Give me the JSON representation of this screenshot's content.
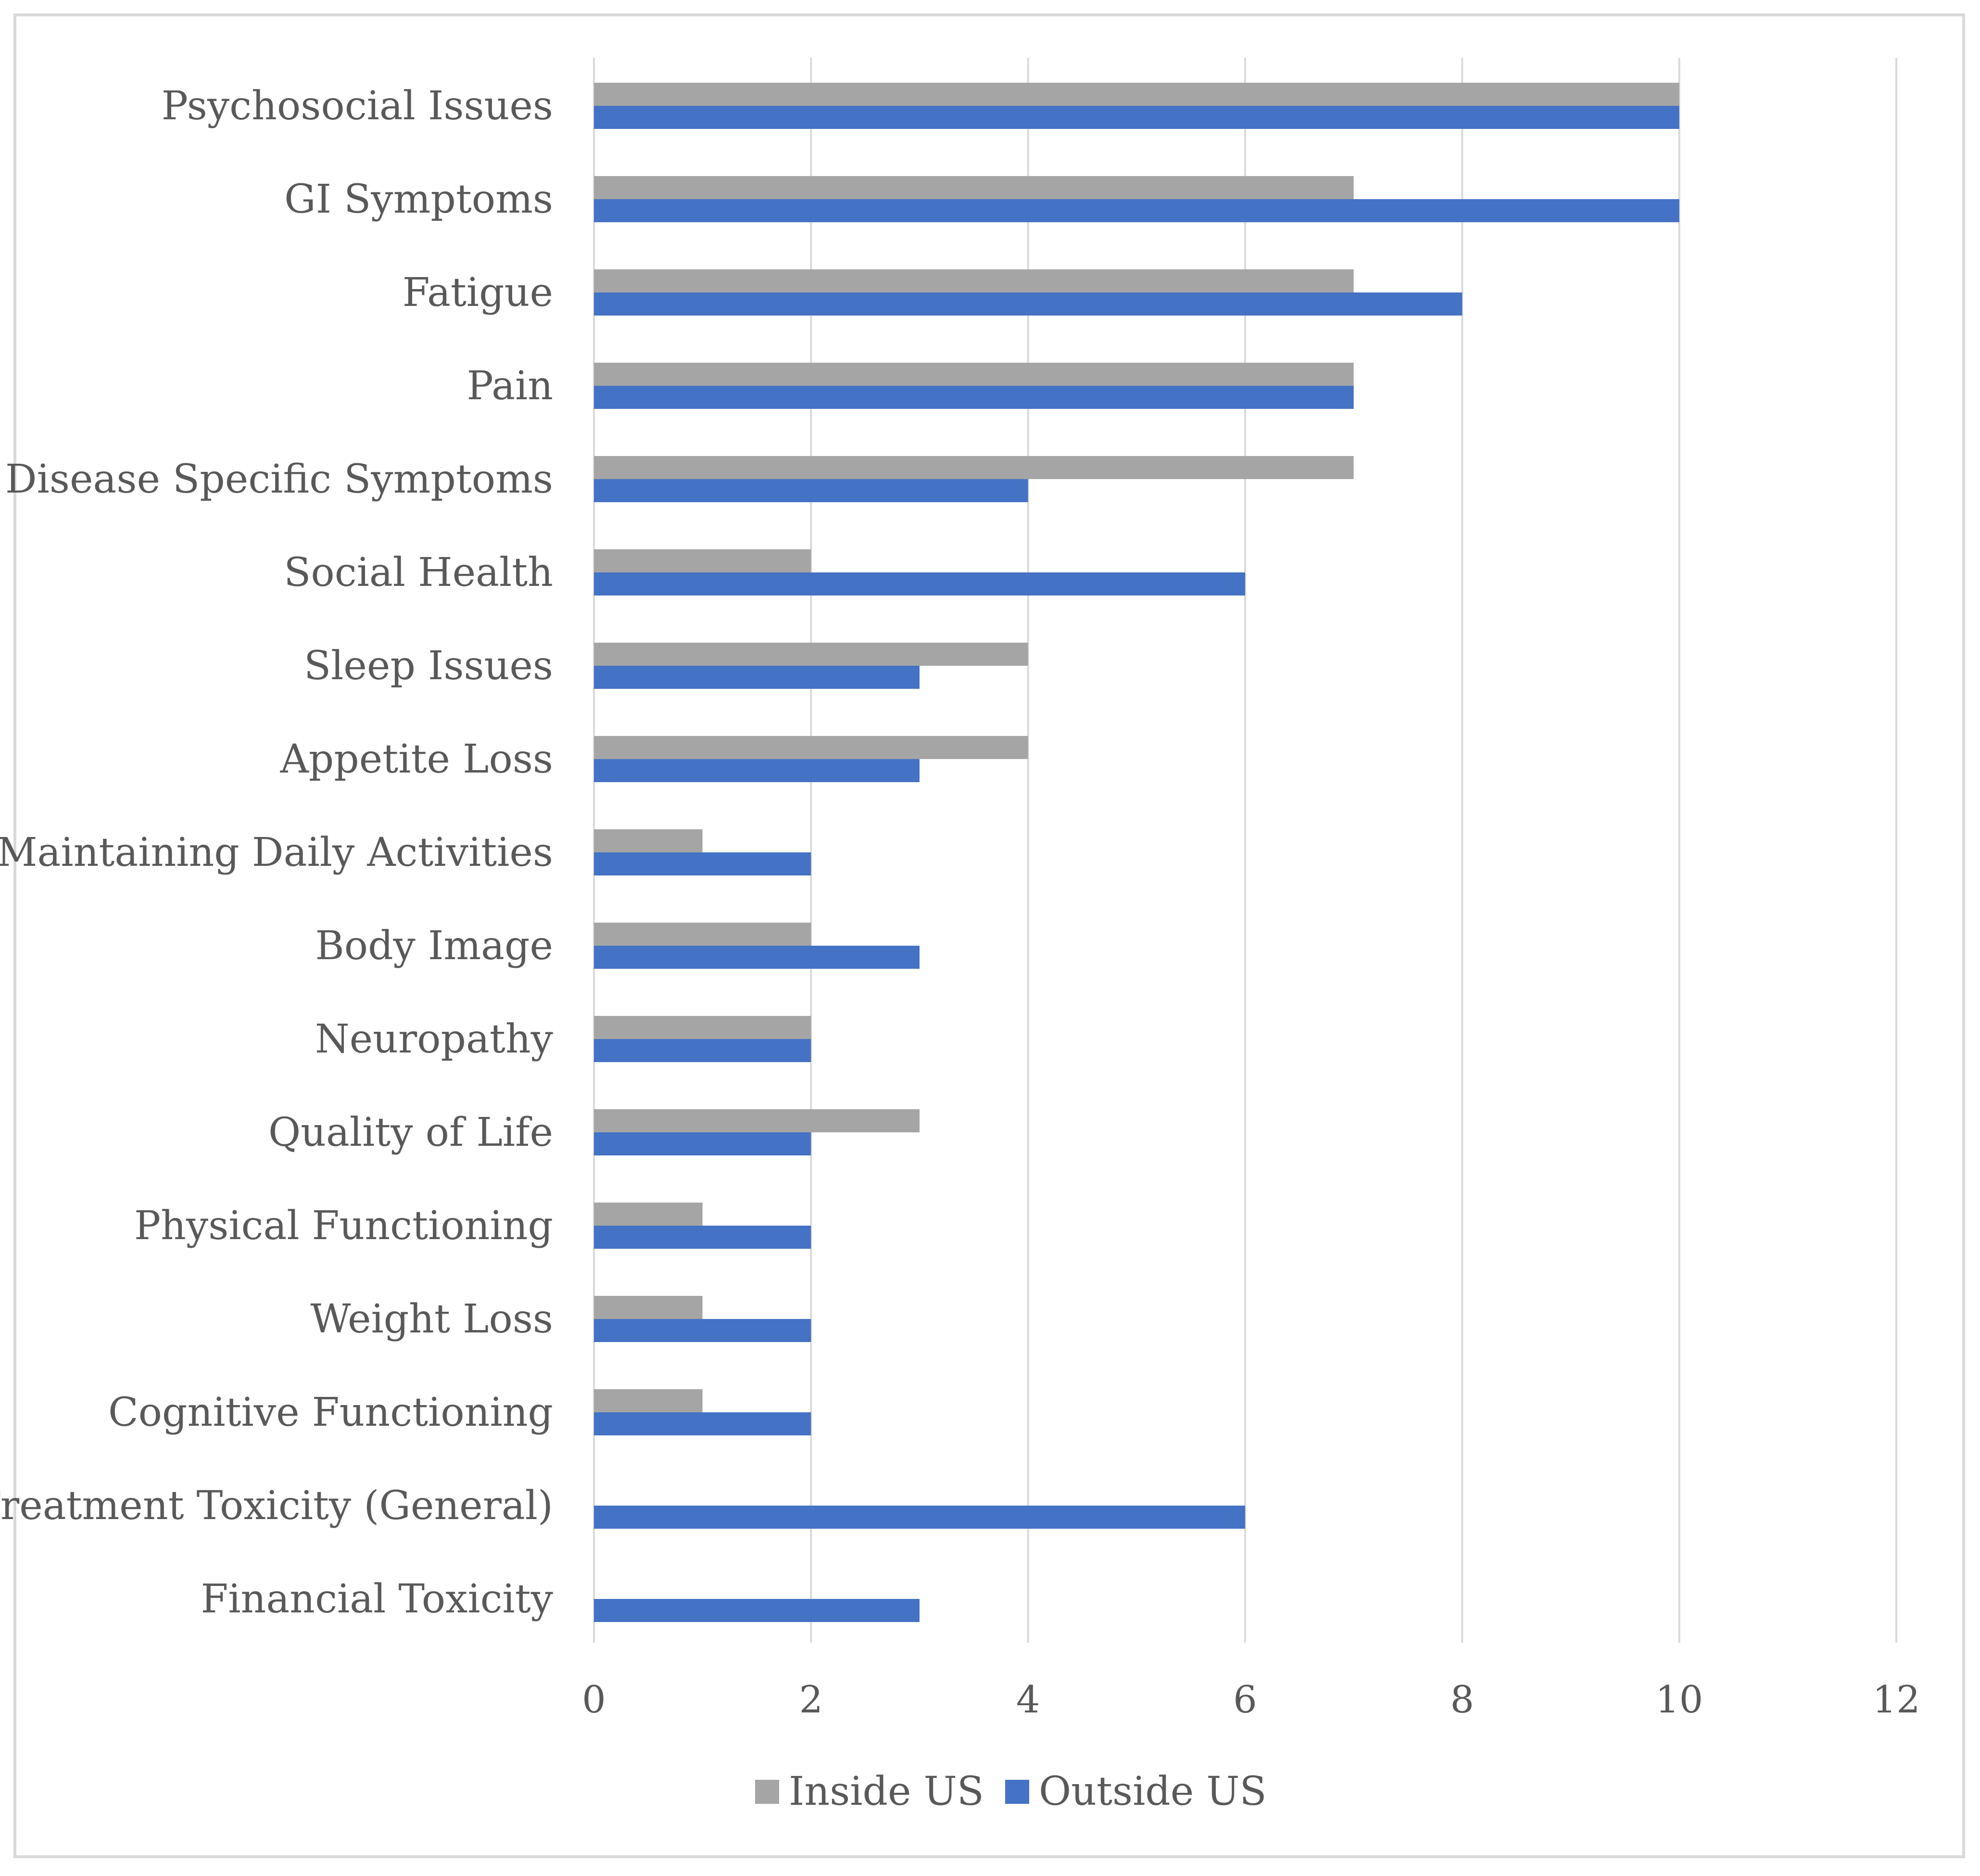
{
  "chart_data": {
    "type": "bar",
    "orientation": "horizontal",
    "categories": [
      "Psychosocial Issues",
      "GI Symptoms",
      "Fatigue",
      "Pain",
      "Disease Specific Symptoms",
      "Social Health",
      "Sleep Issues",
      "Appetite Loss",
      "Maintaining Daily Activities",
      "Body Image",
      "Neuropathy",
      "Quality of Life",
      "Physical Functioning",
      "Weight Loss",
      "Cognitive Functioning",
      "Treatment Toxicity (General)",
      "Financial Toxicity"
    ],
    "series": [
      {
        "name": "Inside US",
        "color": "#a5a5a5",
        "values": [
          10,
          7,
          7,
          7,
          7,
          2,
          4,
          4,
          1,
          2,
          2,
          3,
          1,
          1,
          1,
          0,
          0
        ]
      },
      {
        "name": "Outside US",
        "color": "#4472c4",
        "values": [
          10,
          10,
          8,
          7,
          4,
          6,
          3,
          3,
          2,
          3,
          2,
          2,
          2,
          2,
          2,
          6,
          3
        ]
      }
    ],
    "xlim": [
      0,
      12
    ],
    "xticks": [
      "0",
      "2",
      "4",
      "6",
      "8",
      "10",
      "12"
    ],
    "grid": true,
    "legend_position": "bottom",
    "gridline_color": "#d9d9d9",
    "title": "",
    "xlabel": "",
    "ylabel": ""
  }
}
